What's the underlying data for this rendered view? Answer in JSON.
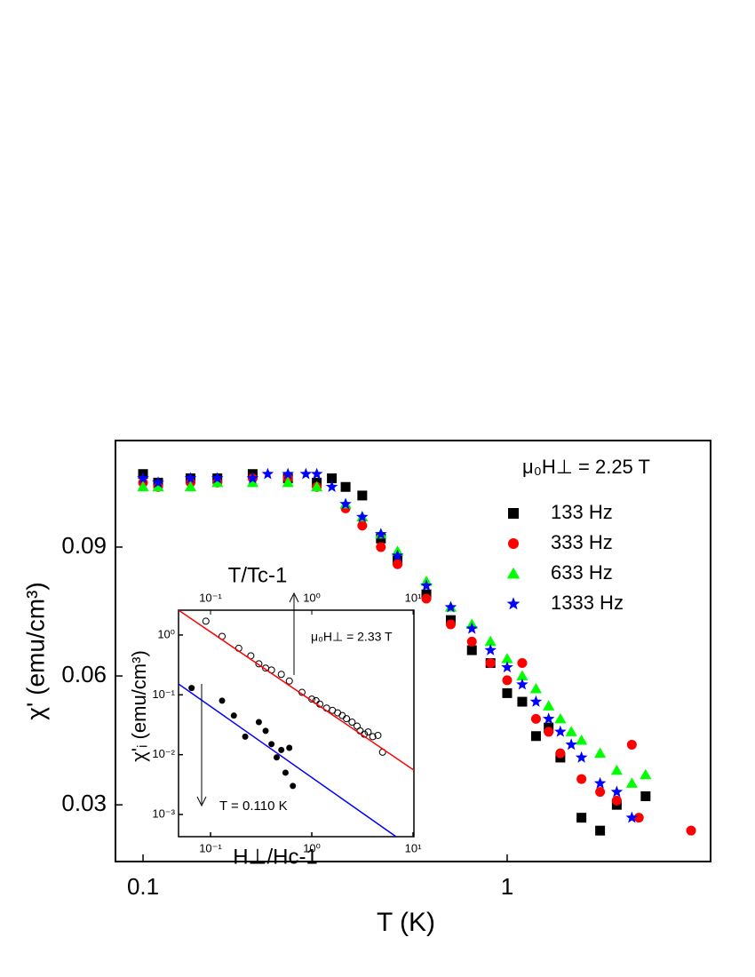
{
  "chart_data": [
    {
      "type": "scatter",
      "xlabel": "T (K)",
      "ylabel": "χ' (emu/cm³)",
      "legend_title": "μ₀H⊥ = 2.25 T",
      "xscale": "log",
      "xlim": [
        0.084,
        3.62
      ],
      "ylim": [
        0.0168,
        0.1148
      ],
      "xticks": [
        0.1,
        1
      ],
      "yticks": [
        0.03,
        0.06,
        0.09
      ],
      "grid": false,
      "legend": "upper right",
      "series": [
        {
          "name": "133 Hz",
          "color": "#000000",
          "marker": "square",
          "x": [
            0.1,
            0.11,
            0.135,
            0.16,
            0.2,
            0.25,
            0.3,
            0.33,
            0.36,
            0.4,
            0.45,
            0.5,
            0.6,
            0.7,
            0.8,
            0.9,
            1.0,
            1.1,
            1.2,
            1.3,
            1.4,
            1.6,
            1.8,
            2.0,
            2.4
          ],
          "values": [
            0.107,
            0.105,
            0.106,
            0.106,
            0.107,
            0.106,
            0.105,
            0.106,
            0.104,
            0.102,
            0.092,
            0.087,
            0.079,
            0.073,
            0.066,
            0.063,
            0.056,
            0.054,
            0.046,
            0.048,
            0.041,
            0.027,
            0.024,
            0.03,
            0.032
          ]
        },
        {
          "name": "333 Hz",
          "color": "#ff0000",
          "marker": "circle",
          "x": [
            0.1,
            0.11,
            0.135,
            0.16,
            0.2,
            0.25,
            0.3,
            0.36,
            0.4,
            0.45,
            0.5,
            0.6,
            0.7,
            0.8,
            0.9,
            1.0,
            1.1,
            1.2,
            1.3,
            1.4,
            1.6,
            1.8,
            2.0,
            2.2,
            2.3,
            3.2
          ],
          "values": [
            0.105,
            0.104,
            0.105,
            0.105,
            0.106,
            0.106,
            0.104,
            0.099,
            0.095,
            0.09,
            0.086,
            0.078,
            0.072,
            0.068,
            0.063,
            0.059,
            0.063,
            0.05,
            0.047,
            0.042,
            0.036,
            0.033,
            0.031,
            0.044,
            0.027,
            0.024
          ]
        },
        {
          "name": "633 Hz",
          "color": "#00ff00",
          "marker": "triangle",
          "x": [
            0.1,
            0.11,
            0.135,
            0.16,
            0.2,
            0.25,
            0.3,
            0.36,
            0.4,
            0.45,
            0.5,
            0.6,
            0.7,
            0.8,
            0.9,
            1.0,
            1.1,
            1.2,
            1.3,
            1.4,
            1.5,
            1.6,
            1.8,
            2.0,
            2.2,
            2.4
          ],
          "values": [
            0.104,
            0.104,
            0.104,
            0.105,
            0.105,
            0.105,
            0.104,
            0.1,
            0.097,
            0.093,
            0.089,
            0.082,
            0.076,
            0.072,
            0.068,
            0.064,
            0.06,
            0.057,
            0.053,
            0.05,
            0.047,
            0.045,
            0.042,
            0.038,
            0.035,
            0.037
          ]
        },
        {
          "name": "1333 Hz",
          "color": "#0000ff",
          "marker": "star",
          "x": [
            0.1,
            0.11,
            0.135,
            0.16,
            0.2,
            0.22,
            0.25,
            0.28,
            0.3,
            0.33,
            0.36,
            0.4,
            0.45,
            0.5,
            0.6,
            0.7,
            0.8,
            0.9,
            1.0,
            1.1,
            1.2,
            1.3,
            1.4,
            1.5,
            1.6,
            1.8,
            2.0,
            2.2
          ],
          "values": [
            0.106,
            0.105,
            0.106,
            0.106,
            0.106,
            0.107,
            0.107,
            0.107,
            0.107,
            0.104,
            0.1,
            0.097,
            0.093,
            0.088,
            0.081,
            0.076,
            0.071,
            0.066,
            0.062,
            0.058,
            0.054,
            0.05,
            0.047,
            0.044,
            0.041,
            0.035,
            0.033,
            0.027
          ]
        }
      ]
    },
    {
      "type": "scatter",
      "xlabel": "H⊥/Hc-1",
      "x2label": "T/Tc-1",
      "ylabel": "χ'ᵢ (emu/cm³)",
      "xscale": "log",
      "yscale": "log",
      "xlim": [
        0.0483,
        10.2
      ],
      "x2lim": [
        0.0483,
        10.2
      ],
      "ylim": [
        0.000426,
        2.6
      ],
      "xticks": [
        {
          "value": 0.1,
          "label": "10⁻¹"
        },
        {
          "value": 1,
          "label": "10⁰"
        },
        {
          "value": 10,
          "label": "10¹"
        }
      ],
      "x2ticks": [
        {
          "value": 0.1,
          "label": "10⁻¹"
        },
        {
          "value": 1,
          "label": "10⁰"
        },
        {
          "value": 10,
          "label": "10¹"
        }
      ],
      "yticks": [
        {
          "value": 0.001,
          "label": "10⁻³"
        },
        {
          "value": 0.01,
          "label": "10⁻²"
        },
        {
          "value": 0.1,
          "label": "10⁻¹"
        },
        {
          "value": 1,
          "label": "10⁰"
        }
      ],
      "annotations": [
        "μ₀H⊥ = 2.33 T",
        "T = 0.110 K"
      ],
      "series": [
        {
          "color": "#000000",
          "marker": "open-circle",
          "axis": "x2",
          "x": [
            0.09,
            0.13,
            0.19,
            0.25,
            0.3,
            0.35,
            0.4,
            0.5,
            0.6,
            0.8,
            1.0,
            1.1,
            1.2,
            1.4,
            1.6,
            1.8,
            2.0,
            2.2,
            2.5,
            2.8,
            3.0,
            3.3,
            3.6,
            4.0,
            4.5,
            5.0
          ],
          "values": [
            1.7,
            0.95,
            0.6,
            0.45,
            0.33,
            0.28,
            0.26,
            0.22,
            0.17,
            0.11,
            0.085,
            0.08,
            0.07,
            0.06,
            0.055,
            0.05,
            0.045,
            0.04,
            0.035,
            0.03,
            0.025,
            0.022,
            0.024,
            0.02,
            0.021,
            0.011
          ]
        },
        {
          "color": "#000000",
          "marker": "circle",
          "x": [
            0.065,
            0.13,
            0.17,
            0.22,
            0.3,
            0.35,
            0.4,
            0.45,
            0.5,
            0.55,
            0.6,
            0.65
          ],
          "values": [
            0.13,
            0.08,
            0.045,
            0.02,
            0.035,
            0.025,
            0.015,
            0.009,
            0.012,
            0.005,
            0.013,
            0.003
          ]
        },
        {
          "color": "#ff0000",
          "type": "line",
          "axis": "x2",
          "x": [
            0.0483,
            10.2
          ],
          "values": [
            2.6,
            0.0055
          ]
        },
        {
          "color": "#0000ff",
          "type": "line",
          "x": [
            0.0483,
            6.8
          ],
          "values": [
            0.152,
            0.000426
          ]
        }
      ]
    }
  ]
}
